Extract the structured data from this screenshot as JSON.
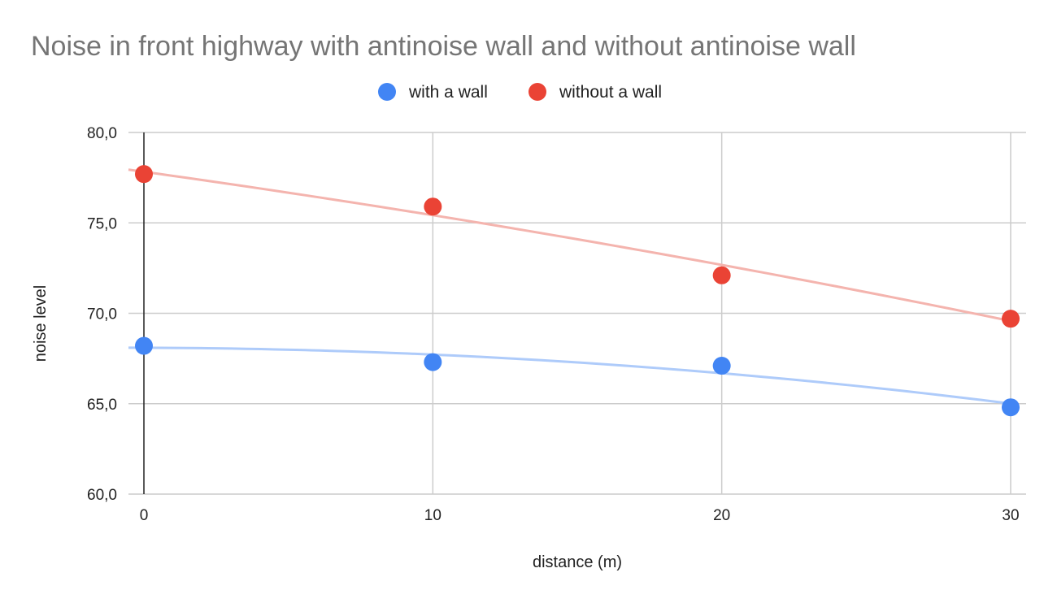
{
  "chart_data": {
    "type": "scatter",
    "title": "Noise in front highway with antinoise wall and without antinoise wall",
    "xlabel": "distance (m)",
    "ylabel": "noise level",
    "xlim": [
      0,
      30
    ],
    "ylim": [
      60,
      80
    ],
    "x_ticks": [
      0,
      10,
      20,
      30
    ],
    "y_ticks": [
      60,
      65,
      70,
      75,
      80
    ],
    "y_tick_labels": [
      "60,0",
      "65,0",
      "70,0",
      "75,0",
      "80,0"
    ],
    "x_tick_labels": [
      "0",
      "10",
      "20",
      "30"
    ],
    "grid": true,
    "legend_position": "top",
    "trendline": "polynomial",
    "series": [
      {
        "name": "with a wall",
        "color": "#4285F4",
        "trend_color": "#AECBFA",
        "x": [
          0,
          10,
          20,
          30
        ],
        "y": [
          68.2,
          67.3,
          67.1,
          64.8
        ],
        "trend_y": [
          68.1,
          67.7,
          66.7,
          65.0
        ]
      },
      {
        "name": "without a wall",
        "color": "#EA4335",
        "trend_color": "#F4B4AE",
        "x": [
          0,
          10,
          20,
          30
        ],
        "y": [
          77.7,
          75.9,
          72.1,
          69.7
        ],
        "trend_y": [
          77.8,
          75.5,
          72.6,
          69.6
        ]
      }
    ]
  }
}
